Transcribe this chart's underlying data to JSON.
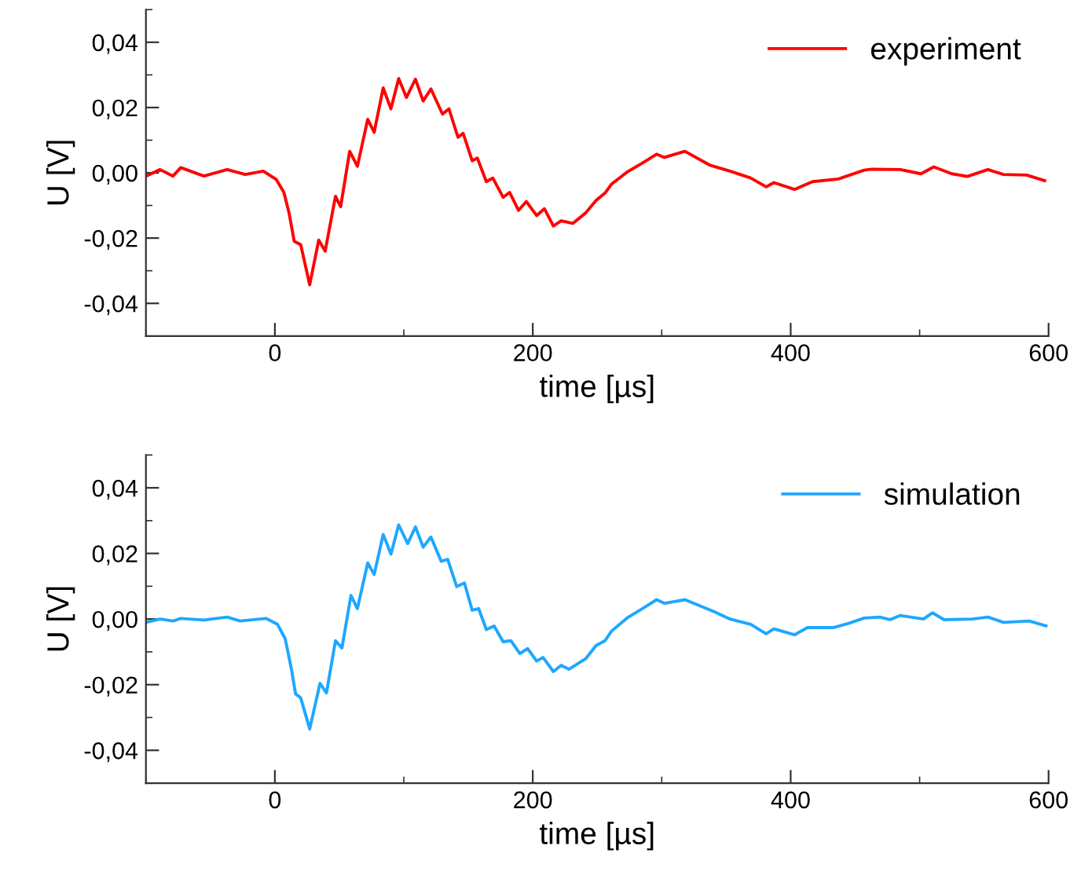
{
  "chart_data": [
    {
      "type": "line",
      "xlabel": "time [µs]",
      "ylabel": "U [V]",
      "legend": "top right",
      "grid": false,
      "marker": "none",
      "line_style": "solid",
      "xlim": [
        -100,
        600
      ],
      "xticks": [
        {
          "value": -100,
          "label": null
        },
        0,
        {
          "value": 100,
          "label": null
        },
        200,
        {
          "value": 300,
          "label": null
        },
        400,
        {
          "value": 500,
          "label": null
        },
        600
      ],
      "ylim": [
        -0.05,
        0.05
      ],
      "yticks": [
        {
          "value": -0.05,
          "label": null
        },
        {
          "value": -0.04,
          "label": "-0,04"
        },
        {
          "value": -0.03,
          "label": null
        },
        {
          "value": -0.02,
          "label": "-0,02"
        },
        {
          "value": -0.01,
          "label": null
        },
        {
          "value": 0,
          "label": "0,00"
        },
        {
          "value": 0.01,
          "label": null
        },
        {
          "value": 0.02,
          "label": "0,02"
        },
        {
          "value": 0.03,
          "label": null
        },
        {
          "value": 0.04,
          "label": "0,04"
        },
        {
          "value": 0.05,
          "label": null
        }
      ],
      "series": [
        {
          "name": "experiment",
          "color": "#ff0000",
          "x": [
            -100,
            -89,
            -79,
            -73,
            -55,
            -37,
            -23,
            -9,
            1,
            7,
            11,
            15,
            20,
            27,
            34,
            39,
            47,
            51,
            58,
            64,
            72,
            77,
            84,
            90,
            96,
            102,
            109,
            115,
            121,
            130,
            135,
            142,
            146,
            153,
            157,
            164,
            169,
            177,
            182,
            189,
            195,
            203,
            209,
            216,
            222,
            231,
            241,
            249,
            256,
            261,
            273,
            285,
            296,
            302,
            318,
            337,
            353,
            369,
            381,
            387,
            403,
            417,
            437,
            457,
            463,
            485,
            501,
            511,
            525,
            537,
            553,
            565,
            583,
            597
          ],
          "values": [
            -0.001,
            0.001,
            -0.001,
            0.0016,
            -0.001,
            0.001,
            -0.0005,
            0.0005,
            -0.002,
            -0.006,
            -0.0123,
            -0.021,
            -0.022,
            -0.0343,
            -0.0206,
            -0.024,
            -0.0072,
            -0.0104,
            0.0066,
            0.002,
            0.0164,
            0.0124,
            0.026,
            0.0196,
            0.0289,
            0.0231,
            0.0287,
            0.022,
            0.0257,
            0.018,
            0.0196,
            0.0109,
            0.0121,
            0.0037,
            0.0045,
            -0.0027,
            -0.0016,
            -0.0075,
            -0.006,
            -0.0115,
            -0.0088,
            -0.0131,
            -0.011,
            -0.0163,
            -0.0147,
            -0.0155,
            -0.0123,
            -0.0085,
            -0.0062,
            -0.0035,
            0.0002,
            0.003,
            0.0057,
            0.0047,
            0.0066,
            0.0024,
            0.0005,
            -0.0016,
            -0.0043,
            -0.003,
            -0.0051,
            -0.0027,
            -0.0019,
            0.0008,
            0.0011,
            0.001,
            -0.0003,
            0.0018,
            -0.0003,
            -0.0011,
            0.001,
            -0.0005,
            -0.0007,
            -0.0024
          ]
        }
      ]
    },
    {
      "type": "line",
      "xlabel": "time [µs]",
      "ylabel": "U [V]",
      "legend": "top right",
      "grid": false,
      "marker": "none",
      "line_style": "solid",
      "xlim": [
        -100,
        600
      ],
      "xticks": [
        {
          "value": -100,
          "label": null
        },
        0,
        {
          "value": 100,
          "label": null
        },
        200,
        {
          "value": 300,
          "label": null
        },
        400,
        {
          "value": 500,
          "label": null
        },
        600
      ],
      "ylim": [
        -0.05,
        0.05
      ],
      "yticks": [
        {
          "value": -0.05,
          "label": null
        },
        {
          "value": -0.04,
          "label": "-0,04"
        },
        {
          "value": -0.03,
          "label": null
        },
        {
          "value": -0.02,
          "label": "-0,02"
        },
        {
          "value": -0.01,
          "label": null
        },
        {
          "value": 0,
          "label": "0,00"
        },
        {
          "value": 0.01,
          "label": null
        },
        {
          "value": 0.02,
          "label": "0,02"
        },
        {
          "value": 0.03,
          "label": null
        },
        {
          "value": 0.04,
          "label": "0,04"
        },
        {
          "value": 0.05,
          "label": null
        }
      ],
      "series": [
        {
          "name": "simulation",
          "color": "#1ea7ff",
          "x": [
            -100,
            -89,
            -79,
            -73,
            -55,
            -37,
            -27,
            -7,
            2,
            8,
            13,
            16,
            20,
            27,
            35,
            40,
            47,
            52,
            59,
            64,
            72,
            77,
            84,
            90,
            96,
            103,
            109,
            115,
            121,
            129,
            134,
            141,
            147,
            153,
            158,
            164,
            170,
            177,
            183,
            190,
            196,
            203,
            208,
            216,
            222,
            228,
            241,
            249,
            256,
            261,
            273,
            285,
            296,
            302,
            318,
            341,
            353,
            369,
            381,
            387,
            403,
            413,
            433,
            445,
            457,
            469,
            477,
            485,
            503,
            510,
            519,
            541,
            553,
            565,
            585,
            598
          ],
          "values": [
            -0.001,
            0,
            -0.0006,
            0.0002,
            -0.0003,
            0.0006,
            -0.0006,
            0.0002,
            -0.0016,
            -0.006,
            -0.0156,
            -0.0228,
            -0.024,
            -0.0335,
            -0.0196,
            -0.0225,
            -0.0066,
            -0.0088,
            0.0072,
            0.0032,
            0.0171,
            0.0136,
            0.0258,
            0.0198,
            0.0287,
            0.023,
            0.0281,
            0.0219,
            0.025,
            0.0176,
            0.0182,
            0.0099,
            0.011,
            0.0027,
            0.0032,
            -0.0032,
            -0.0021,
            -0.0069,
            -0.0066,
            -0.0105,
            -0.009,
            -0.0128,
            -0.0117,
            -0.016,
            -0.0141,
            -0.0153,
            -0.0121,
            -0.0081,
            -0.0066,
            -0.0037,
            0.0003,
            0.0032,
            0.0059,
            0.0048,
            0.0059,
            0.0022,
            0,
            -0.0016,
            -0.0045,
            -0.003,
            -0.0048,
            -0.0026,
            -0.0026,
            -0.0013,
            0.0003,
            0.0006,
            -0.0002,
            0.0011,
            0,
            0.0019,
            -0.0002,
            0,
            0.0006,
            -0.001,
            -0.0006,
            -0.0021
          ]
        }
      ]
    }
  ]
}
